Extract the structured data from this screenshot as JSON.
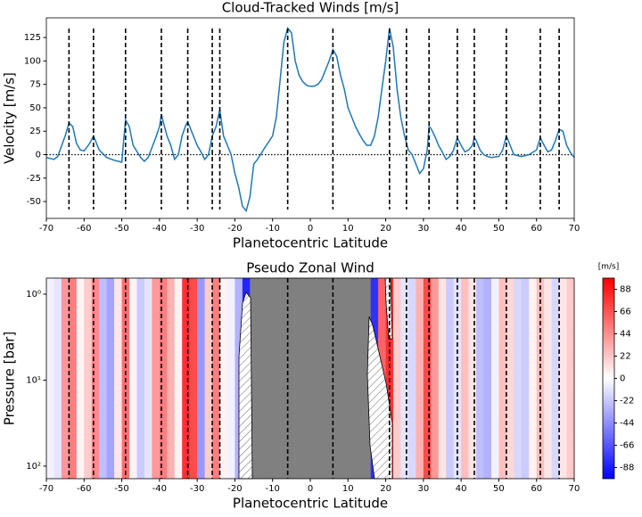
{
  "chart_data": [
    {
      "type": "line",
      "title": "Cloud-Tracked Winds [m/s]",
      "xlabel": "Planetocentric Latitude",
      "ylabel": "Velocity [m/s]",
      "x": [
        -70,
        -68,
        -67,
        -65,
        -64,
        -63,
        -62,
        -61,
        -60,
        -58.5,
        -57.5,
        -56,
        -54,
        -52,
        -50,
        -49.5,
        -49,
        -48,
        -47,
        -45,
        -44,
        -43,
        -41,
        -40,
        -39.5,
        -39,
        -38,
        -37,
        -36,
        -35,
        -34,
        -33,
        -32.5,
        -32,
        -30,
        -29,
        -28,
        -27,
        -26,
        -25,
        -24,
        -23,
        -22,
        -21,
        -20,
        -19,
        -18,
        -17,
        -16,
        -15,
        -14,
        -12,
        -10,
        -9,
        -8,
        -7,
        -6,
        -5,
        -4,
        -3,
        -2,
        -1,
        0,
        1,
        2,
        3,
        4,
        5,
        6,
        7,
        8,
        9,
        10,
        11,
        12,
        13,
        14,
        15,
        16,
        17,
        18,
        19,
        20,
        21,
        22,
        23,
        24,
        25,
        26,
        27,
        28,
        29,
        30,
        31,
        31.5,
        32,
        33,
        34,
        35,
        36,
        37,
        38,
        39,
        40,
        41,
        42,
        43,
        43.5,
        44,
        45,
        46,
        47,
        48,
        50,
        51,
        52,
        53,
        54,
        56,
        58,
        60,
        61,
        62,
        63,
        64,
        65,
        66,
        67,
        68,
        69,
        70
      ],
      "values": [
        -3,
        -5,
        -2,
        20,
        34,
        30,
        12,
        5,
        4,
        12,
        20,
        5,
        -3,
        -6,
        -8,
        15,
        37,
        30,
        10,
        -3,
        -7,
        -3,
        18,
        30,
        43,
        35,
        20,
        10,
        -5,
        0,
        20,
        32,
        35,
        30,
        10,
        3,
        -5,
        0,
        20,
        30,
        48,
        20,
        10,
        0,
        -20,
        -35,
        -55,
        -60,
        -45,
        -10,
        -5,
        8,
        20,
        40,
        80,
        120,
        135,
        130,
        100,
        85,
        78,
        74,
        73,
        73,
        75,
        80,
        90,
        100,
        112,
        105,
        85,
        70,
        50,
        40,
        30,
        22,
        15,
        10,
        10,
        20,
        40,
        70,
        100,
        135,
        115,
        70,
        40,
        20,
        5,
        0,
        -10,
        -20,
        -15,
        5,
        30,
        28,
        20,
        10,
        3,
        -5,
        -2,
        5,
        18,
        10,
        3,
        5,
        10,
        18,
        15,
        5,
        0,
        -2,
        -3,
        -2,
        5,
        20,
        10,
        0,
        -2,
        0,
        5,
        18,
        10,
        3,
        5,
        15,
        27,
        25,
        10,
        2,
        -3
      ],
      "color": "#1f77b4",
      "xlim": [
        -70,
        70
      ],
      "xticks": [
        -70,
        -60,
        -50,
        -40,
        -30,
        -20,
        -10,
        0,
        10,
        20,
        30,
        40,
        50,
        60,
        70
      ],
      "ylim": [
        -68,
        146
      ],
      "yticks": [
        -50,
        -25,
        0,
        25,
        50,
        75,
        100,
        125
      ],
      "hline": 0,
      "vlines": [
        -64,
        -57.5,
        -49,
        -39.5,
        -32.5,
        -26,
        -24,
        -6,
        6,
        21,
        25.5,
        31.5,
        39,
        43.5,
        52,
        61,
        66
      ]
    },
    {
      "type": "heatmap",
      "title": "Pseudo Zonal Wind",
      "xlabel": "Planetocentric Latitude",
      "ylabel": "Pressure [bar]",
      "x": [
        -69,
        -67,
        -65,
        -63,
        -61,
        -59,
        -57,
        -55,
        -53,
        -51,
        -49,
        -47,
        -45,
        -43,
        -41,
        -39,
        -37,
        -35,
        -33,
        -31,
        -29,
        -27,
        -25,
        -23,
        -21,
        -19,
        -17,
        -15,
        -13,
        -11,
        -9,
        -7,
        -5,
        -3,
        -1,
        1,
        3,
        5,
        7,
        9,
        11,
        13,
        15,
        17,
        19,
        21,
        23,
        25,
        27,
        29,
        31,
        33,
        35,
        37,
        39,
        41,
        43,
        45,
        47,
        49,
        51,
        53,
        55,
        57,
        59,
        61,
        63,
        65,
        67,
        69
      ],
      "values": [
        -5,
        -10,
        40,
        50,
        5,
        20,
        45,
        -25,
        -35,
        10,
        55,
        5,
        -20,
        -10,
        40,
        50,
        30,
        5,
        80,
        70,
        -40,
        20,
        50,
        5,
        -5,
        -30,
        -85,
        null,
        null,
        null,
        null,
        null,
        null,
        null,
        null,
        null,
        null,
        null,
        null,
        null,
        null,
        null,
        null,
        -80,
        60,
        80,
        20,
        -10,
        -15,
        30,
        70,
        40,
        10,
        -20,
        -10,
        25,
        10,
        -25,
        -30,
        -5,
        25,
        15,
        -15,
        -20,
        5,
        25,
        10,
        -15,
        10,
        20
      ],
      "mask_color": "#808080",
      "xlim": [
        -70,
        70
      ],
      "xticks": [
        -70,
        -60,
        -50,
        -40,
        -30,
        -20,
        -10,
        0,
        10,
        20,
        30,
        40,
        50,
        60,
        70
      ],
      "log_y": true,
      "ylim": [
        140,
        0.65
      ],
      "yticks": [
        {
          "value": 1,
          "label": "10⁰"
        },
        {
          "value": 10,
          "label": "10¹"
        },
        {
          "value": 100,
          "label": "10²"
        }
      ],
      "colorbar_label": "[m/s]",
      "clim": [
        -99,
        99
      ],
      "cticks": [
        -88,
        -66,
        -44,
        -22,
        0,
        22,
        44,
        66,
        88
      ],
      "vlines": [
        -64,
        -57.5,
        -49,
        -39.5,
        -32.5,
        -26,
        -24,
        -6,
        6,
        21,
        25.5,
        31.5,
        39,
        43.5,
        52,
        61,
        66
      ]
    }
  ]
}
